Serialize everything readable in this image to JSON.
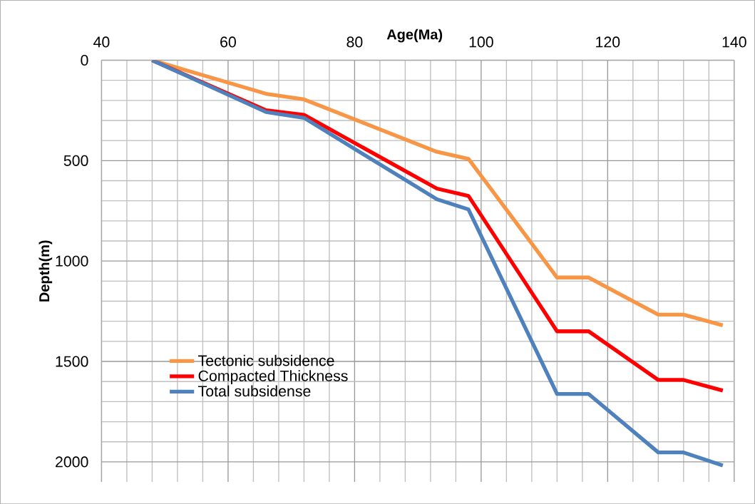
{
  "chart_data": {
    "type": "line",
    "xlabel": "Age(Ma)",
    "ylabel": "Depth(m)",
    "x": [
      48,
      66,
      72,
      93,
      98,
      112,
      117,
      128,
      132,
      138.2
    ],
    "series": [
      {
        "name": "Tectonic subsidence",
        "color": "#f79646",
        "values": [
          0,
          167,
          195,
          456,
          491,
          1082,
          1082,
          1267,
          1267,
          1320
        ]
      },
      {
        "name": "Compacted Thickness",
        "color": "#ff0000",
        "values": [
          0,
          249,
          272,
          639,
          676,
          1350,
          1350,
          1592,
          1592,
          1645
        ]
      },
      {
        "name": "Total subsidense",
        "color": "#4f81bd",
        "values": [
          0,
          258,
          287,
          692,
          743,
          1662,
          1662,
          1953,
          1953,
          2018
        ]
      }
    ],
    "xlim": [
      40,
      140
    ],
    "ylim": [
      2100,
      0
    ],
    "xticks": [
      40,
      60,
      80,
      100,
      120,
      140
    ],
    "yticks": [
      0,
      500,
      1000,
      1500,
      2000
    ],
    "grid": true,
    "legend": "bottom left",
    "marker": "none",
    "line_style": "solid"
  }
}
